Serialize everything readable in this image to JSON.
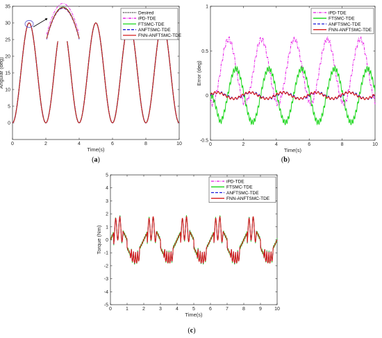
{
  "captions": [
    "a",
    "b",
    "c"
  ],
  "chart_data": [
    {
      "id": "a",
      "type": "line",
      "title": "",
      "xlabel": "Time(s)",
      "ylabel": "Angular (deg)",
      "xlim": [
        0,
        10
      ],
      "ylim": [
        -5,
        35
      ],
      "xticks": [
        0,
        2,
        4,
        6,
        8,
        10
      ],
      "yticks": [
        0,
        5,
        10,
        15,
        20,
        25,
        30,
        35
      ],
      "legend_position": "top-right",
      "signal": {
        "kind": "sine",
        "offset": 15,
        "amplitude": 15,
        "period": 2,
        "phase_shift": 0.5
      },
      "series": [
        {
          "name": "Desired",
          "color": "#000000",
          "dash": "dotted"
        },
        {
          "name": "iPD-TDE",
          "color": "#e619e6",
          "dash": "dashdot"
        },
        {
          "name": "FTSMC-TDE",
          "color": "#19d619",
          "dash": "solid"
        },
        {
          "name": "ANFTSMC-TDE",
          "color": "#1a1ad9",
          "dash": "dashed"
        },
        {
          "name": "FNN-ANFTSMC-TDE",
          "color": "#d61a1a",
          "dash": "solid"
        }
      ],
      "zoom_inset": true
    },
    {
      "id": "b",
      "type": "line",
      "title": "",
      "xlabel": "Time(s)",
      "ylabel": "Error (deg)",
      "xlim": [
        0,
        10
      ],
      "ylim": [
        -0.5,
        1
      ],
      "xticks": [
        0,
        2,
        4,
        6,
        8,
        10
      ],
      "yticks": [
        -0.5,
        0,
        0.5,
        1
      ],
      "legend_position": "top-right",
      "series": [
        {
          "name": "iPD-TDE",
          "color": "#e619e6",
          "dash": "dashdot",
          "offset": 0.28,
          "amplitude": 0.38,
          "period": 2,
          "peak_at": 1.1
        },
        {
          "name": "FTSMC-TDE",
          "color": "#19d619",
          "dash": "solid",
          "offset": 0,
          "amplitude": 0.33,
          "period": 2,
          "peak_at": 1.55
        },
        {
          "name": "ANFTSMC-TDE",
          "color": "#1a1ad9",
          "dash": "dashed",
          "offset": 0,
          "amplitude": 0.04,
          "period": 2,
          "peak_at": 0.5
        },
        {
          "name": "FNN-ANFTSMC-TDE",
          "color": "#d61a1a",
          "dash": "solid",
          "offset": 0,
          "amplitude": 0.04,
          "period": 2,
          "peak_at": 0.5
        }
      ]
    },
    {
      "id": "c",
      "type": "line",
      "title": "",
      "xlabel": "Time(s)",
      "ylabel": "Torque (Nm)",
      "xlim": [
        0,
        10
      ],
      "ylim": [
        -5,
        5
      ],
      "xticks": [
        0,
        1,
        2,
        3,
        4,
        5,
        6,
        7,
        8,
        9,
        10
      ],
      "yticks": [
        -5,
        -4,
        -3,
        -2,
        -1,
        0,
        1,
        2,
        3,
        4,
        5
      ],
      "legend_position": "top-right",
      "series": [
        {
          "name": "iPD-TDE",
          "color": "#e619e6",
          "dash": "dashdot"
        },
        {
          "name": "FTSMC-TDE",
          "color": "#19d619",
          "dash": "solid"
        },
        {
          "name": "ANFTSMC-TDE",
          "color": "#1a1ad9",
          "dash": "dashed"
        },
        {
          "name": "FNN-ANFTSMC-TDE",
          "color": "#d61a1a",
          "dash": "solid"
        }
      ],
      "signal": {
        "amplitude_range": [
          -2,
          2.1
        ],
        "period": 2
      }
    }
  ]
}
